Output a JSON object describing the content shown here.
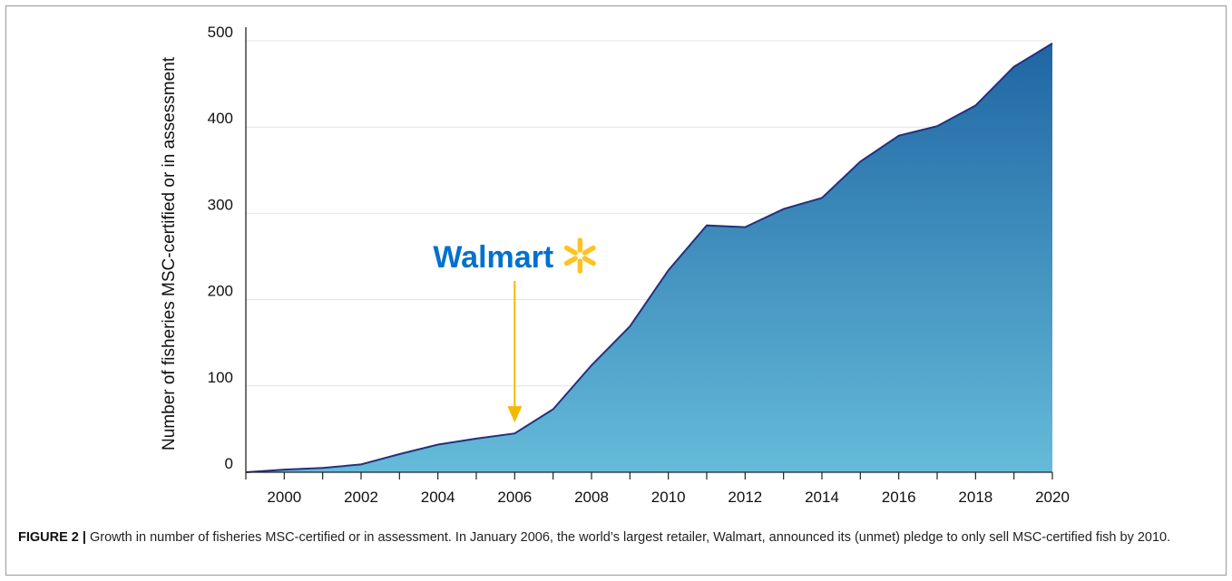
{
  "chart_data": {
    "type": "area",
    "ylabel": "Number of fisheries MSC-certified or in assessment",
    "xlabel": "",
    "xlim": [
      1999,
      2020
    ],
    "ylim": [
      0,
      500
    ],
    "x_ticks": [
      2000,
      2002,
      2004,
      2006,
      2008,
      2010,
      2012,
      2014,
      2016,
      2018,
      2020
    ],
    "y_ticks": [
      0,
      100,
      200,
      300,
      400,
      500
    ],
    "grid": true,
    "x": [
      1999,
      2000,
      2001,
      2002,
      2003,
      2004,
      2005,
      2006,
      2007,
      2008,
      2009,
      2010,
      2011,
      2012,
      2013,
      2014,
      2015,
      2016,
      2017,
      2018,
      2019,
      2020
    ],
    "values": [
      0,
      3,
      5,
      9,
      21,
      32,
      39,
      45,
      73,
      124,
      169,
      234,
      286,
      284,
      305,
      318,
      360,
      390,
      401,
      425,
      470,
      497
    ],
    "annotation": {
      "text": "Walmart",
      "x": 2006,
      "y": 45
    },
    "colors": {
      "fill_top": "#1f66a4",
      "fill_bottom": "#65bbd9",
      "line": "#27307a",
      "walmart_blue": "#0071ce",
      "walmart_yellow": "#ffc220",
      "arrow": "#f5b800"
    }
  },
  "caption": {
    "figure_label": "FIGURE 2 |",
    "text": " Growth in number of fisheries MSC-certified or in assessment. In January 2006, the world’s largest retailer, Walmart, announced its (unmet) pledge to only sell MSC-certified fish by 2010."
  }
}
